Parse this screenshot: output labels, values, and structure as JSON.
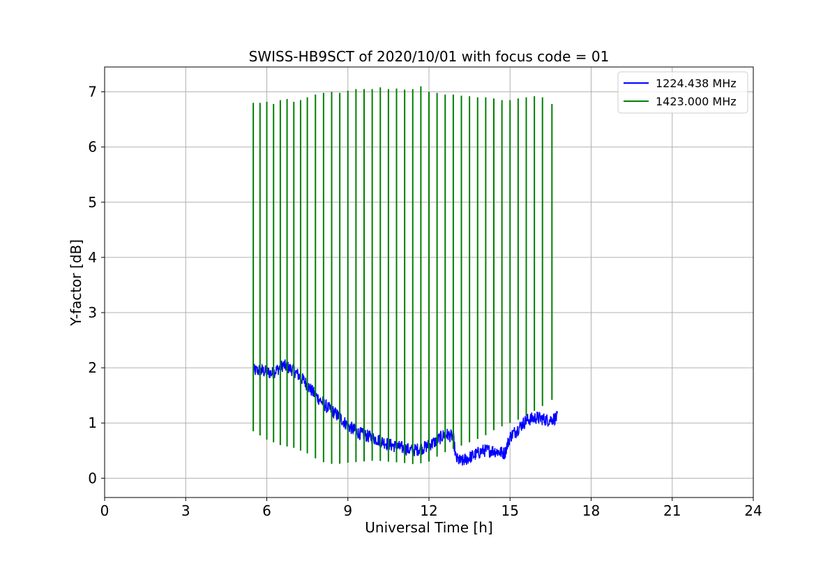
{
  "chart_data": {
    "type": "line",
    "title": "SWISS-HB9SCT of 2020/10/01 with focus code = 01",
    "xlabel": "Universal Time [h]",
    "ylabel": "Y-factor [dB]",
    "xlim": [
      0,
      24
    ],
    "ylim": [
      -0.35,
      7.45
    ],
    "xticks": [
      0,
      3,
      6,
      9,
      12,
      15,
      18,
      21,
      24
    ],
    "yticks": [
      0,
      1,
      2,
      3,
      4,
      5,
      6,
      7
    ],
    "grid": true,
    "legend_position": "top-right",
    "series": [
      {
        "name": "1224.438 MHz",
        "color": "#0000ff",
        "x": [
          5.5,
          5.8,
          6.2,
          6.6,
          7.0,
          7.4,
          7.8,
          8.2,
          8.6,
          9.0,
          9.4,
          9.8,
          10.2,
          10.6,
          11.0,
          11.4,
          11.8,
          12.2,
          12.6,
          12.9,
          13.0,
          13.2,
          13.6,
          14.0,
          14.4,
          14.8,
          15.0,
          15.3,
          15.6,
          16.0,
          16.4,
          16.75
        ],
        "y": [
          1.95,
          1.95,
          1.9,
          2.05,
          1.95,
          1.75,
          1.5,
          1.3,
          1.15,
          0.95,
          0.82,
          0.75,
          0.68,
          0.6,
          0.55,
          0.5,
          0.55,
          0.65,
          0.8,
          0.75,
          0.35,
          0.3,
          0.4,
          0.5,
          0.5,
          0.45,
          0.75,
          0.9,
          1.05,
          1.1,
          1.05,
          1.1
        ]
      },
      {
        "name": "1423.000 MHz",
        "color": "#008000",
        "x": [
          5.5,
          6.0,
          6.5,
          7.0,
          7.5,
          8.0,
          8.5,
          9.0,
          9.5,
          10.0,
          10.5,
          11.0,
          11.5,
          12.0,
          12.5,
          13.0,
          13.5,
          14.0,
          14.5,
          15.0,
          15.5,
          16.0,
          16.5,
          16.75
        ],
        "y": [
          0.85,
          0.7,
          0.6,
          0.55,
          0.45,
          0.3,
          0.25,
          0.28,
          0.3,
          0.32,
          0.3,
          0.28,
          0.25,
          0.3,
          0.45,
          0.55,
          0.65,
          0.75,
          0.9,
          1.0,
          1.1,
          1.25,
          1.4,
          1.5
        ]
      }
    ],
    "spikes": {
      "series": "1423.000 MHz",
      "x": [
        5.5,
        5.75,
        6.0,
        6.25,
        6.5,
        6.75,
        7.0,
        7.25,
        7.5,
        7.8,
        8.1,
        8.4,
        8.7,
        9.0,
        9.3,
        9.6,
        9.9,
        10.2,
        10.5,
        10.8,
        11.1,
        11.4,
        11.7,
        12.0,
        12.3,
        12.6,
        12.9,
        13.2,
        13.5,
        13.8,
        14.1,
        14.4,
        14.7,
        15.0,
        15.3,
        15.6,
        15.9,
        16.2,
        16.55
      ],
      "y": [
        6.8,
        6.8,
        6.82,
        6.78,
        6.85,
        6.87,
        6.82,
        6.85,
        6.9,
        6.95,
        6.98,
        7.0,
        6.98,
        7.02,
        7.05,
        7.05,
        7.05,
        7.08,
        7.05,
        7.06,
        7.04,
        7.05,
        7.1,
        7.0,
        6.98,
        6.95,
        6.95,
        6.93,
        6.92,
        6.9,
        6.9,
        6.88,
        6.85,
        6.85,
        6.88,
        6.9,
        6.92,
        6.9,
        6.78
      ]
    }
  }
}
